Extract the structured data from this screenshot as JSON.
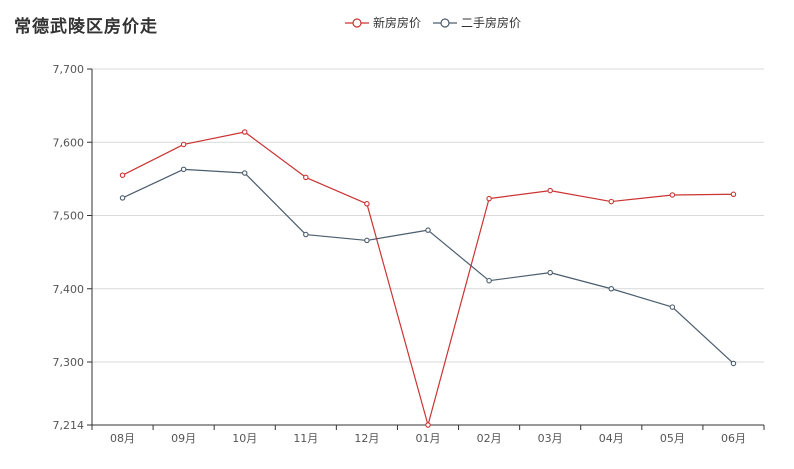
{
  "title": "常德武陵区房价走",
  "legend": {
    "items": [
      {
        "label": "新房房价",
        "color": "#cc3333"
      },
      {
        "label": "二手房房价",
        "color": "#4b5d6d"
      }
    ]
  },
  "chart_data": {
    "type": "line",
    "title": "常德武陵区房价走",
    "categories": [
      "08月",
      "09月",
      "10月",
      "11月",
      "12月",
      "01月",
      "02月",
      "03月",
      "04月",
      "05月",
      "06月"
    ],
    "series": [
      {
        "name": "新房房价",
        "color": "#cc3333",
        "values": [
          7555,
          7597,
          7614,
          7552,
          7516,
          7214,
          7523,
          7534,
          7519,
          7528,
          7529
        ]
      },
      {
        "name": "二手房房价",
        "color": "#4b5d6d",
        "values": [
          7524,
          7563,
          7558,
          7474,
          7466,
          7480,
          7411,
          7422,
          7400,
          7375,
          7298
        ]
      }
    ],
    "y_ticks": [
      "7,700",
      "7,600",
      "7,500",
      "7,400",
      "7,300",
      "7,214"
    ],
    "ylim": [
      7214,
      7700
    ],
    "grid": true,
    "legend_position": "top-center"
  }
}
